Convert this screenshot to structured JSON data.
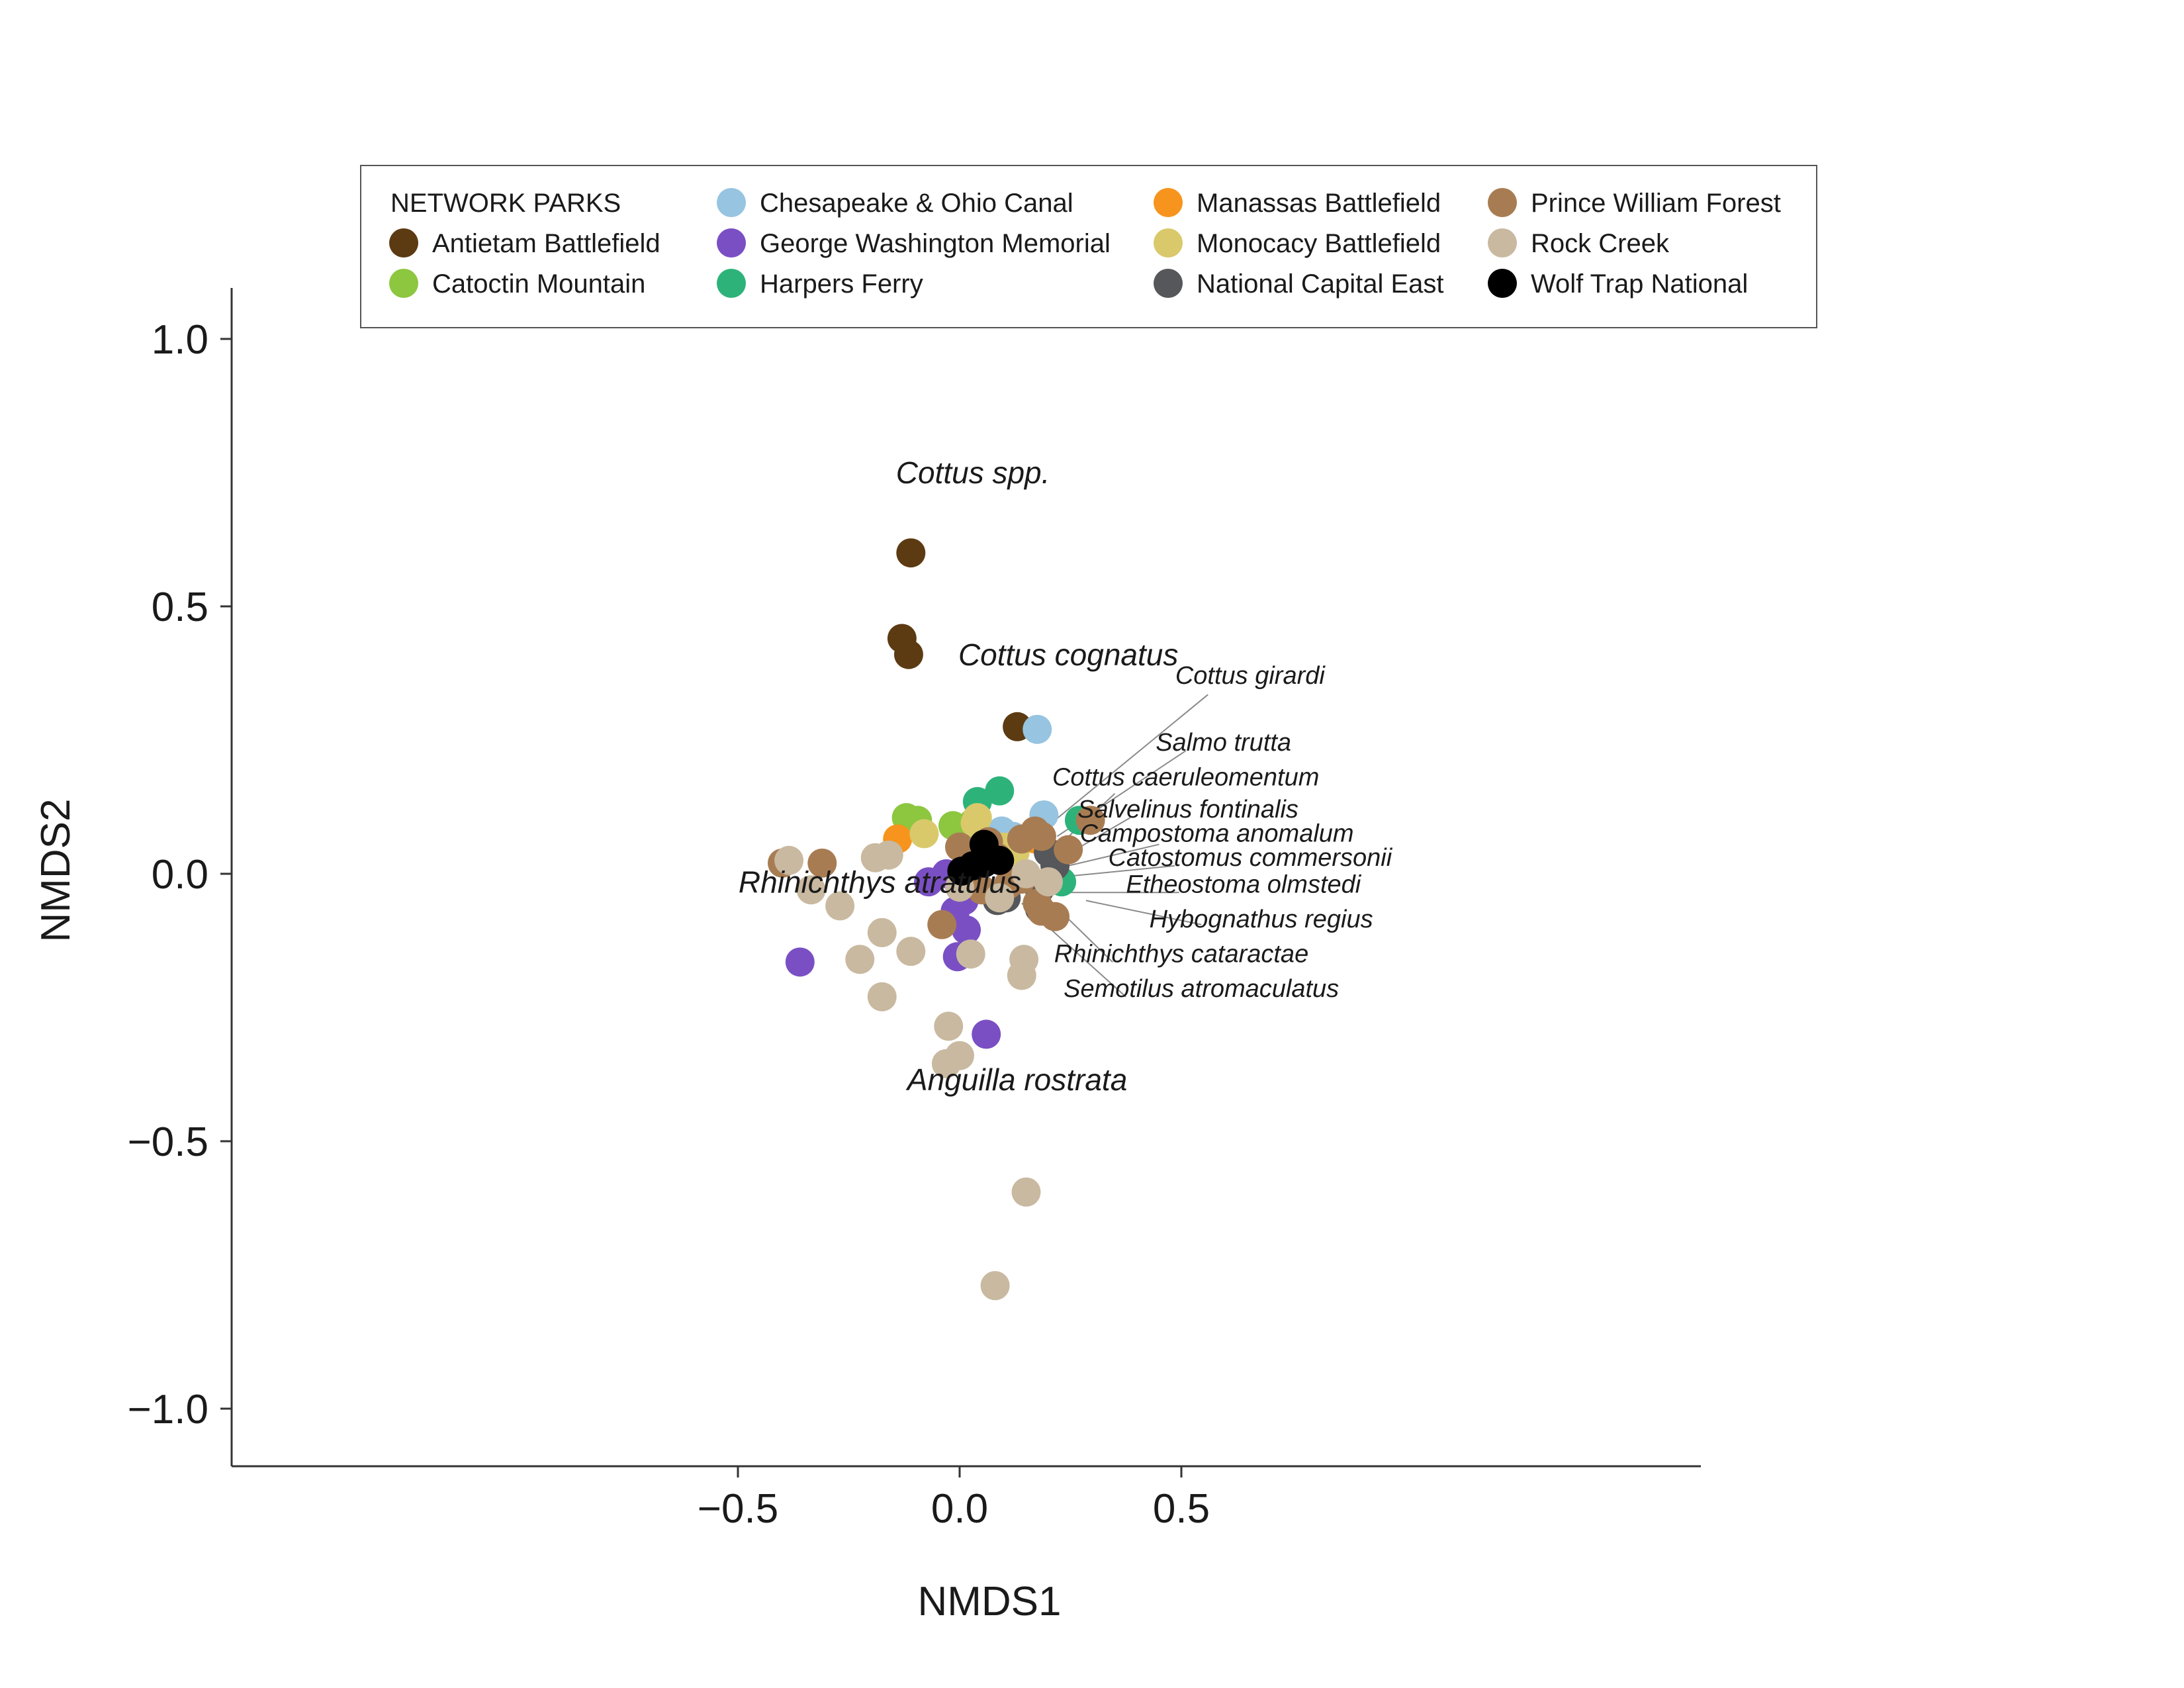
{
  "chart_data": {
    "type": "scatter",
    "xlabel": "NMDS1",
    "ylabel": "NMDS2",
    "xlim": [
      -0.82,
      0.82
    ],
    "ylim": [
      -1.1,
      1.1
    ],
    "xticks": [
      -0.5,
      0.0,
      0.5
    ],
    "yticks": [
      -1.0,
      -0.5,
      0.0,
      0.5,
      1.0
    ],
    "xtick_labels": [
      "−0.5",
      "0.0",
      "0.5"
    ],
    "ytick_labels": [
      "−1.0",
      "−0.5",
      "0.0",
      "0.5",
      "1.0"
    ],
    "grid": false,
    "legend": {
      "title": "NETWORK PARKS",
      "placement": "top"
    },
    "series": [
      {
        "name": "Antietam Battlefield",
        "color": "#5c3a12",
        "points": [
          [
            -0.11,
            0.6
          ],
          [
            -0.13,
            0.44
          ],
          [
            -0.115,
            0.41
          ],
          [
            0.13,
            0.275
          ]
        ]
      },
      {
        "name": "Catoctin Mountain",
        "color": "#8dc63f",
        "points": [
          [
            -0.12,
            0.105
          ],
          [
            -0.095,
            0.1
          ],
          [
            -0.015,
            0.09
          ],
          [
            0.03,
            0.095
          ],
          [
            0.02,
            0.01
          ]
        ]
      },
      {
        "name": "Harpers Ferry",
        "color": "#2db37a",
        "points": [
          [
            0.04,
            0.135
          ],
          [
            0.09,
            0.155
          ],
          [
            0.27,
            0.1
          ],
          [
            0.23,
            -0.015
          ]
        ]
      },
      {
        "name": "Chesapeake & Ohio Canal",
        "color": "#97c4e0",
        "points": [
          [
            0.175,
            0.27
          ],
          [
            0.19,
            0.11
          ],
          [
            0.095,
            0.08
          ],
          [
            0.12,
            0.07
          ]
        ]
      },
      {
        "name": "George Washington Memorial",
        "color": "#7a4fc4",
        "points": [
          [
            -0.36,
            -0.165
          ],
          [
            -0.07,
            -0.015
          ],
          [
            -0.03,
            0.0
          ],
          [
            0.01,
            -0.05
          ],
          [
            -0.01,
            -0.07
          ],
          [
            0.015,
            -0.105
          ],
          [
            -0.005,
            -0.155
          ],
          [
            0.06,
            -0.3
          ]
        ]
      },
      {
        "name": "Manassas Battlefield",
        "color": "#f7941d",
        "points": [
          [
            -0.14,
            0.065
          ],
          [
            0.17,
            0.065
          ],
          [
            0.095,
            0.04
          ]
        ]
      },
      {
        "name": "Monocacy Battlefield",
        "color": "#d9c96b",
        "points": [
          [
            -0.08,
            0.075
          ],
          [
            0.04,
            0.105
          ],
          [
            0.035,
            0.095
          ],
          [
            0.125,
            0.04
          ],
          [
            0.1,
            0.05
          ]
        ]
      },
      {
        "name": "National Capital East",
        "color": "#55575a",
        "points": [
          [
            0.2,
            0.04
          ],
          [
            0.215,
            0.015
          ],
          [
            0.18,
            -0.03
          ],
          [
            0.18,
            -0.065
          ],
          [
            0.105,
            -0.045
          ],
          [
            0.085,
            -0.05
          ]
        ]
      },
      {
        "name": "Prince William Forest",
        "color": "#a87c52",
        "points": [
          [
            -0.4,
            0.02
          ],
          [
            -0.31,
            0.02
          ],
          [
            -0.04,
            -0.095
          ],
          [
            0.0,
            0.05
          ],
          [
            0.05,
            -0.03
          ],
          [
            0.065,
            0.06
          ],
          [
            0.085,
            0.03
          ],
          [
            0.11,
            -0.02
          ],
          [
            0.14,
            0.065
          ],
          [
            0.17,
            0.08
          ],
          [
            0.185,
            0.07
          ],
          [
            0.245,
            0.045
          ],
          [
            0.295,
            0.1
          ],
          [
            0.175,
            -0.055
          ],
          [
            0.185,
            -0.07
          ],
          [
            0.215,
            -0.08
          ],
          [
            0.14,
            -0.01
          ]
        ]
      },
      {
        "name": "Rock Creek",
        "color": "#c9b9a0",
        "points": [
          [
            -0.385,
            0.025
          ],
          [
            -0.335,
            -0.03
          ],
          [
            -0.27,
            -0.06
          ],
          [
            -0.19,
            0.03
          ],
          [
            -0.16,
            0.035
          ],
          [
            -0.175,
            -0.11
          ],
          [
            -0.225,
            -0.16
          ],
          [
            -0.175,
            -0.23
          ],
          [
            -0.11,
            -0.145
          ],
          [
            -0.025,
            -0.285
          ],
          [
            -0.03,
            -0.355
          ],
          [
            0.0,
            -0.34
          ],
          [
            0.025,
            -0.15
          ],
          [
            0.09,
            -0.045
          ],
          [
            0.145,
            -0.16
          ],
          [
            0.14,
            -0.19
          ],
          [
            0.15,
            -0.595
          ],
          [
            0.08,
            -0.77
          ],
          [
            0.2,
            -0.015
          ],
          [
            0.15,
            0.0
          ],
          [
            0.0,
            -0.025
          ]
        ]
      },
      {
        "name": "Wolf Trap National",
        "color": "#000000",
        "points": [
          [
            0.005,
            0.005
          ],
          [
            0.03,
            0.015
          ],
          [
            0.055,
            0.055
          ],
          [
            0.055,
            0.02
          ],
          [
            0.07,
            0.03
          ],
          [
            0.09,
            0.025
          ]
        ]
      }
    ],
    "species_vectors": [
      {
        "label": "Cottus spp.",
        "label_pos": [
          0.03,
          0.73
        ],
        "size": "large",
        "line": false
      },
      {
        "label": "Cottus cognatus",
        "label_pos": [
          0.245,
          0.39
        ],
        "size": "large",
        "line": false
      },
      {
        "label": "Rhinichthys atratulus",
        "label_pos": [
          -0.18,
          -0.035
        ],
        "size": "large",
        "line": false
      },
      {
        "label": "Anguilla rostrata",
        "label_pos": [
          0.13,
          -0.405
        ],
        "size": "large",
        "line": false
      },
      {
        "label": "Cottus girardi",
        "label_pos": [
          0.655,
          0.355
        ],
        "size": "small",
        "line": true,
        "from": [
          0.2,
          0.09
        ],
        "to": [
          0.56,
          0.335
        ]
      },
      {
        "label": "Salmo trutta",
        "label_pos": [
          0.595,
          0.23
        ],
        "size": "small",
        "line": true,
        "from": [
          0.22,
          0.07
        ],
        "to": [
          0.51,
          0.23
        ]
      },
      {
        "label": "Cottus caeruleomentum",
        "label_pos": [
          0.51,
          0.165
        ],
        "size": "small",
        "line": true,
        "from": [
          0.22,
          0.05
        ],
        "to": [
          0.35,
          0.15
        ]
      },
      {
        "label": "Salvelinus fontinalis",
        "label_pos": [
          0.515,
          0.105
        ],
        "size": "small",
        "line": true,
        "from": [
          0.23,
          0.03
        ],
        "to": [
          0.385,
          0.105
        ]
      },
      {
        "label": "Campostoma anomalum",
        "label_pos": [
          0.58,
          0.06
        ],
        "size": "small",
        "line": true,
        "from": [
          0.245,
          0.015
        ],
        "to": [
          0.45,
          0.055
        ]
      },
      {
        "label": "Catostomus commersonii",
        "label_pos": [
          0.655,
          0.015
        ],
        "size": "small",
        "line": true,
        "from": [
          0.24,
          -0.005
        ],
        "to": [
          0.485,
          0.015
        ]
      },
      {
        "label": "Etheostoma olmstedi",
        "label_pos": [
          0.64,
          -0.035
        ],
        "size": "small",
        "line": true,
        "from": [
          0.24,
          -0.035
        ],
        "to": [
          0.495,
          -0.035
        ]
      },
      {
        "label": "Hybognathus regius",
        "label_pos": [
          0.68,
          -0.1
        ],
        "size": "small",
        "line": true,
        "from": [
          0.285,
          -0.05
        ],
        "to": [
          0.545,
          -0.095
        ]
      },
      {
        "label": "Rhinichthys cataractae",
        "label_pos": [
          0.5,
          -0.165
        ],
        "size": "small",
        "line": true,
        "from": [
          0.215,
          -0.06
        ],
        "to": [
          0.345,
          -0.165
        ]
      },
      {
        "label": "Semotilus atromaculatus",
        "label_pos": [
          0.545,
          -0.23
        ],
        "size": "small",
        "line": true,
        "from": [
          0.14,
          -0.055
        ],
        "to": [
          0.375,
          -0.23
        ]
      }
    ]
  }
}
